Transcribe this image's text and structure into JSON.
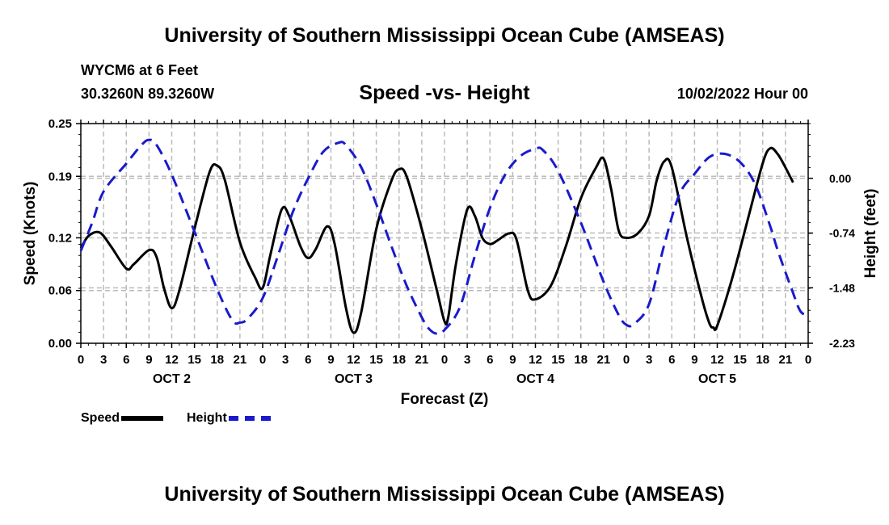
{
  "page": {
    "title_top": "University of Southern Mississippi Ocean Cube (AMSEAS)",
    "title_bottom": "University of Southern Mississippi Ocean Cube (AMSEAS)",
    "station": "WYCM6 at 6 Feet",
    "coords": "30.3260N  89.3260W",
    "subtitle": "Speed -vs- Height",
    "datetime": "10/02/2022 Hour 00"
  },
  "legend": {
    "speed": "Speed",
    "height": "Height"
  },
  "colors": {
    "speed": "#000000",
    "height": "#1a1acc",
    "grid": "#bbbbbb"
  },
  "chart_data": {
    "type": "line",
    "title": "Speed -vs- Height",
    "xlabel": "Forecast (Z)",
    "ylabel": "Speed (Knots)",
    "ylabel_right": "Height (feet)",
    "x_range_hours": [
      0,
      96
    ],
    "x_tick_labels": [
      "0",
      "3",
      "6",
      "9",
      "12",
      "15",
      "18",
      "21",
      "0",
      "3",
      "6",
      "9",
      "12",
      "15",
      "18",
      "21",
      "0",
      "3",
      "6",
      "9",
      "12",
      "15",
      "18",
      "21",
      "0",
      "3",
      "6",
      "9",
      "12",
      "15",
      "18",
      "21",
      "0"
    ],
    "day_labels": [
      "OCT 2",
      "OCT 3",
      "OCT 4",
      "OCT 5"
    ],
    "y_left": {
      "range": [
        0,
        0.25
      ],
      "ticks": [
        0,
        0.06,
        0.12,
        0.19,
        0.25
      ],
      "tick_labels": [
        "0.00",
        "0.06",
        "0.12",
        "0.19",
        "0.25"
      ]
    },
    "y_right": {
      "range": [
        -2.23,
        0.74
      ],
      "ticks": [
        -2.23,
        -1.48,
        -0.74,
        0.0
      ],
      "tick_labels": [
        "-2.23",
        "-1.48",
        "-0.74",
        "0.00"
      ]
    },
    "grid": true,
    "legend_position": "bottom-left",
    "series": [
      {
        "name": "Speed",
        "axis": "left",
        "style": "solid",
        "points": [
          [
            0,
            0.108
          ],
          [
            1,
            0.122
          ],
          [
            2.5,
            0.126
          ],
          [
            4,
            0.11
          ],
          [
            6,
            0.085
          ],
          [
            7,
            0.09
          ],
          [
            9,
            0.106
          ],
          [
            10,
            0.098
          ],
          [
            11,
            0.062
          ],
          [
            12,
            0.04
          ],
          [
            13,
            0.06
          ],
          [
            15,
            0.13
          ],
          [
            17,
            0.195
          ],
          [
            18,
            0.202
          ],
          [
            19,
            0.186
          ],
          [
            21,
            0.115
          ],
          [
            23,
            0.075
          ],
          [
            24,
            0.063
          ],
          [
            25,
            0.1
          ],
          [
            26.5,
            0.152
          ],
          [
            27.5,
            0.145
          ],
          [
            29,
            0.11
          ],
          [
            30,
            0.097
          ],
          [
            31,
            0.107
          ],
          [
            32.5,
            0.133
          ],
          [
            33.5,
            0.113
          ],
          [
            35,
            0.04
          ],
          [
            36,
            0.012
          ],
          [
            37,
            0.035
          ],
          [
            39,
            0.13
          ],
          [
            41,
            0.185
          ],
          [
            42,
            0.198
          ],
          [
            43,
            0.19
          ],
          [
            45,
            0.13
          ],
          [
            47,
            0.06
          ],
          [
            48,
            0.025
          ],
          [
            48.5,
            0.03
          ],
          [
            49.5,
            0.09
          ],
          [
            51,
            0.152
          ],
          [
            52,
            0.145
          ],
          [
            53,
            0.12
          ],
          [
            54,
            0.113
          ],
          [
            55,
            0.117
          ],
          [
            56.5,
            0.125
          ],
          [
            57.5,
            0.118
          ],
          [
            59,
            0.06
          ],
          [
            60,
            0.05
          ],
          [
            62,
            0.065
          ],
          [
            64,
            0.11
          ],
          [
            66,
            0.165
          ],
          [
            68,
            0.2
          ],
          [
            69,
            0.21
          ],
          [
            70,
            0.175
          ],
          [
            71,
            0.128
          ],
          [
            72,
            0.12
          ],
          [
            73.5,
            0.125
          ],
          [
            75,
            0.145
          ],
          [
            76,
            0.185
          ],
          [
            77,
            0.207
          ],
          [
            78,
            0.2
          ],
          [
            80,
            0.12
          ],
          [
            82,
            0.05
          ],
          [
            83,
            0.022
          ],
          [
            83.5,
            0.018
          ],
          [
            84,
            0.02
          ],
          [
            86,
            0.075
          ],
          [
            88,
            0.14
          ],
          [
            90,
            0.205
          ],
          [
            91,
            0.222
          ],
          [
            92,
            0.215
          ],
          [
            93,
            0.2
          ],
          [
            94,
            0.183
          ]
        ]
      },
      {
        "name": "Height",
        "axis": "right",
        "style": "dashed",
        "points": [
          [
            0,
            -0.98
          ],
          [
            1.5,
            -0.6
          ],
          [
            3,
            -0.18
          ],
          [
            6,
            0.2
          ],
          [
            8,
            0.45
          ],
          [
            9,
            0.52
          ],
          [
            10,
            0.45
          ],
          [
            12,
            0.05
          ],
          [
            15,
            -0.72
          ],
          [
            18,
            -1.5
          ],
          [
            20,
            -1.92
          ],
          [
            21,
            -1.95
          ],
          [
            22,
            -1.9
          ],
          [
            24,
            -1.62
          ],
          [
            26,
            -1.05
          ],
          [
            28,
            -0.45
          ],
          [
            30,
            0.0
          ],
          [
            32,
            0.36
          ],
          [
            34,
            0.48
          ],
          [
            35,
            0.45
          ],
          [
            37,
            0.15
          ],
          [
            39,
            -0.35
          ],
          [
            41,
            -0.92
          ],
          [
            43,
            -1.45
          ],
          [
            45,
            -1.88
          ],
          [
            46,
            -2.04
          ],
          [
            47,
            -2.1
          ],
          [
            48,
            -2.05
          ],
          [
            50,
            -1.75
          ],
          [
            52,
            -1.05
          ],
          [
            54,
            -0.4
          ],
          [
            56,
            0.05
          ],
          [
            58,
            0.3
          ],
          [
            60,
            0.4
          ],
          [
            61,
            0.38
          ],
          [
            63,
            0.1
          ],
          [
            66,
            -0.6
          ],
          [
            69,
            -1.4
          ],
          [
            71,
            -1.85
          ],
          [
            72,
            -1.98
          ],
          [
            73,
            -1.97
          ],
          [
            75,
            -1.7
          ],
          [
            77,
            -0.9
          ],
          [
            79,
            -0.22
          ],
          [
            81,
            0.06
          ],
          [
            83,
            0.29
          ],
          [
            85,
            0.33
          ],
          [
            87,
            0.22
          ],
          [
            89,
            -0.08
          ],
          [
            91,
            -0.65
          ],
          [
            92,
            -0.98
          ],
          [
            94,
            -1.55
          ],
          [
            95,
            -1.8
          ],
          [
            96,
            -1.85
          ]
        ]
      }
    ]
  }
}
